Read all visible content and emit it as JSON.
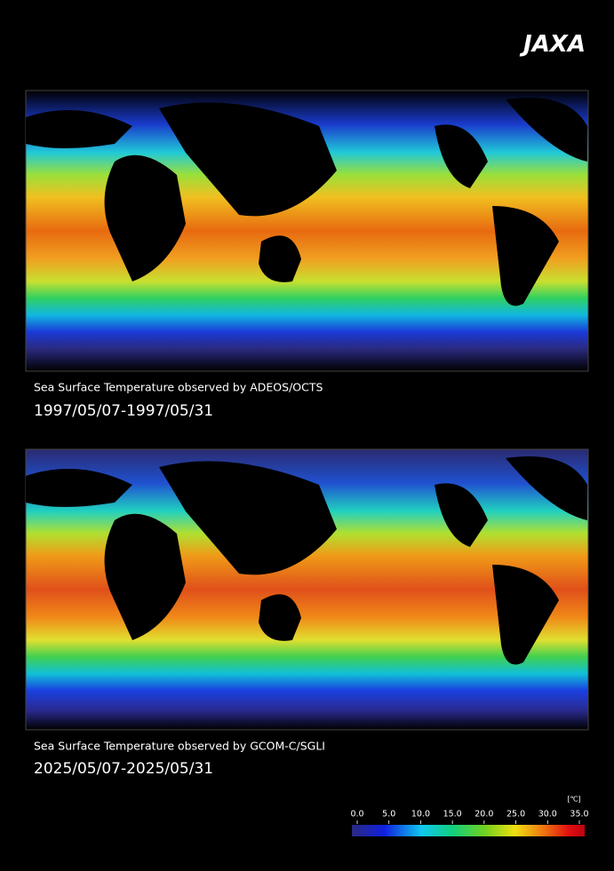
{
  "logo": "JAXA",
  "panels": [
    {
      "caption": "Sea Surface Temperature observed by ADEOS/OCTS",
      "period": "1997/05/07-1997/05/31"
    },
    {
      "caption": "Sea Surface Temperature observed by GCOM-C/SGLI",
      "period": "2025/05/07-2025/05/31"
    }
  ],
  "colorbar": {
    "unit": "[℃]",
    "range": [
      0,
      35
    ],
    "ticks": [
      {
        "value": 0,
        "label": "0.0"
      },
      {
        "value": 5,
        "label": "5.0"
      },
      {
        "value": 10,
        "label": "10.0"
      },
      {
        "value": 15,
        "label": "15.0"
      },
      {
        "value": 20,
        "label": "20.0"
      },
      {
        "value": 25,
        "label": "25.0"
      },
      {
        "value": 30,
        "label": "30.0"
      },
      {
        "value": 35,
        "label": "35.0"
      }
    ]
  }
}
